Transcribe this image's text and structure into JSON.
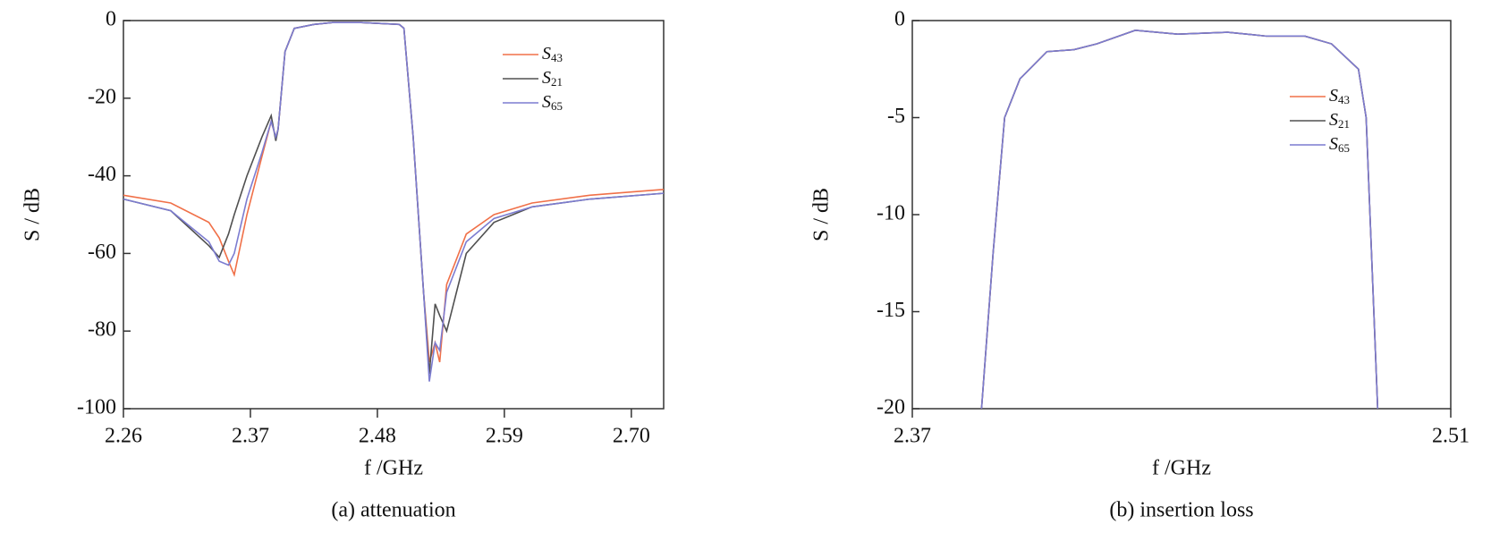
{
  "chart_data": [
    {
      "type": "line",
      "caption": "(a) attenuation",
      "x_label": "f /GHz",
      "y_label": "S / dB",
      "x": [
        2.26,
        2.301,
        2.334,
        2.343,
        2.351,
        2.356,
        2.367,
        2.38,
        2.388,
        2.392,
        2.394,
        2.4,
        2.408,
        2.425,
        2.441,
        2.466,
        2.499,
        2.503,
        2.511,
        2.52,
        2.525,
        2.53,
        2.534,
        2.54,
        2.557,
        2.581,
        2.614,
        2.664,
        2.728
      ],
      "series": [
        {
          "name": "S43",
          "color": "#f07048",
          "values": [
            -45,
            -47,
            -52,
            -56,
            -62,
            -65.5,
            -50,
            -35,
            -26,
            -30,
            -28,
            -8,
            -2,
            -1,
            -0.5,
            -0.5,
            -1,
            -2,
            -30,
            -70,
            -88,
            -83,
            -88,
            -68,
            -55,
            -50,
            -47,
            -45,
            -43.5
          ]
        },
        {
          "name": "S21",
          "color": "#505050",
          "values": [
            -46,
            -49,
            -58,
            -61,
            -55,
            -50,
            -40,
            -30,
            -24.5,
            -31,
            -28,
            -8,
            -2,
            -1,
            -0.5,
            -0.5,
            -1,
            -2,
            -30,
            -70,
            -91,
            -73,
            -76,
            -80,
            -60,
            -52,
            -48,
            -46,
            -44.5
          ]
        },
        {
          "name": "S65",
          "color": "#7c7cd0",
          "values": [
            -46,
            -49,
            -57,
            -62,
            -63,
            -60,
            -46,
            -34,
            -26,
            -30,
            -28,
            -8,
            -2,
            -1,
            -0.5,
            -0.5,
            -1,
            -2,
            -30,
            -70,
            -93,
            -83,
            -85,
            -70,
            -57,
            -51,
            -48,
            -46,
            -44.5
          ]
        }
      ],
      "xlim": [
        2.26,
        2.728
      ],
      "xticks": [
        2.26,
        2.37,
        2.48,
        2.59,
        {
          "value": 2.7,
          "label": "2.70"
        }
      ],
      "ylim": [
        -100,
        0
      ],
      "yticks": [
        0,
        -20,
        -40,
        -60,
        -80,
        -100
      ],
      "legend": "upper right"
    },
    {
      "type": "line",
      "caption": "(b) insertion loss",
      "x_label": "f /GHz",
      "y_label": "S / dB",
      "x": [
        2.388,
        2.391,
        2.394,
        2.398,
        2.405,
        2.412,
        2.418,
        2.428,
        2.439,
        2.452,
        2.462,
        2.472,
        2.479,
        2.486,
        2.488,
        2.491
      ],
      "series": [
        {
          "name": "S43",
          "color": "#f07048",
          "values": [
            -20,
            -12,
            -5,
            -3,
            -1.6,
            -1.5,
            -1.2,
            -0.5,
            -0.7,
            -0.6,
            -0.8,
            -0.8,
            -1.2,
            -2.5,
            -5,
            -20
          ]
        },
        {
          "name": "S21",
          "color": "#505050",
          "values": [
            -20,
            -12,
            -5,
            -3,
            -1.6,
            -1.5,
            -1.2,
            -0.5,
            -0.7,
            -0.6,
            -0.8,
            -0.8,
            -1.2,
            -2.5,
            -5,
            -20
          ]
        },
        {
          "name": "S65",
          "color": "#7c7cd0",
          "values": [
            -20,
            -12,
            -5,
            -3,
            -1.6,
            -1.5,
            -1.2,
            -0.5,
            -0.7,
            -0.6,
            -0.8,
            -0.8,
            -1.2,
            -2.5,
            -5,
            -20
          ]
        }
      ],
      "xlim": [
        2.37,
        2.51
      ],
      "xticks": [
        2.37,
        2.51
      ],
      "ylim": [
        -20,
        0
      ],
      "yticks": [
        0,
        -5,
        -10,
        -15,
        -20
      ],
      "legend": "center right"
    }
  ]
}
